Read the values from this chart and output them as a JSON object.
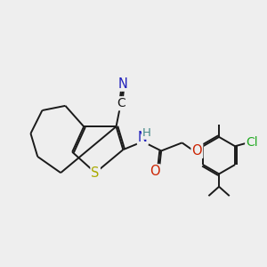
{
  "background_color": "#eeeeee",
  "bond_color": "#1a1a1a",
  "bond_width": 1.4,
  "dbo": 0.07,
  "atoms": {
    "S": {
      "color": "#aaaa00",
      "fontsize": 10.5
    },
    "N": {
      "color": "#2020bb",
      "fontsize": 10.5
    },
    "O": {
      "color": "#cc2200",
      "fontsize": 10.5
    },
    "Cl": {
      "color": "#22aa22",
      "fontsize": 10
    },
    "C": {
      "color": "#1a1a1a",
      "fontsize": 10.5
    },
    "H": {
      "color": "#448888",
      "fontsize": 9.5
    }
  },
  "figsize": [
    3.0,
    3.0
  ],
  "dpi": 100
}
